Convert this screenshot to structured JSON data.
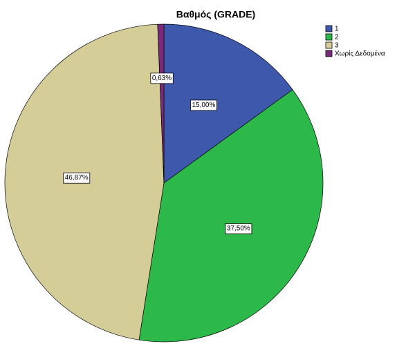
{
  "chart_data": {
    "type": "pie",
    "title": "Βαθμός (GRADE)",
    "categories": [
      "1",
      "2",
      "3",
      "Χωρίς Δεδομένα"
    ],
    "values": [
      15.0,
      37.5,
      46.87,
      0.63
    ],
    "value_labels": [
      "15,00%",
      "37,50%",
      "46,87%",
      "0,63%"
    ],
    "colors": [
      "#3e58ac",
      "#2db84a",
      "#d4cd98",
      "#7a2a7a"
    ],
    "legend": "top-right"
  }
}
